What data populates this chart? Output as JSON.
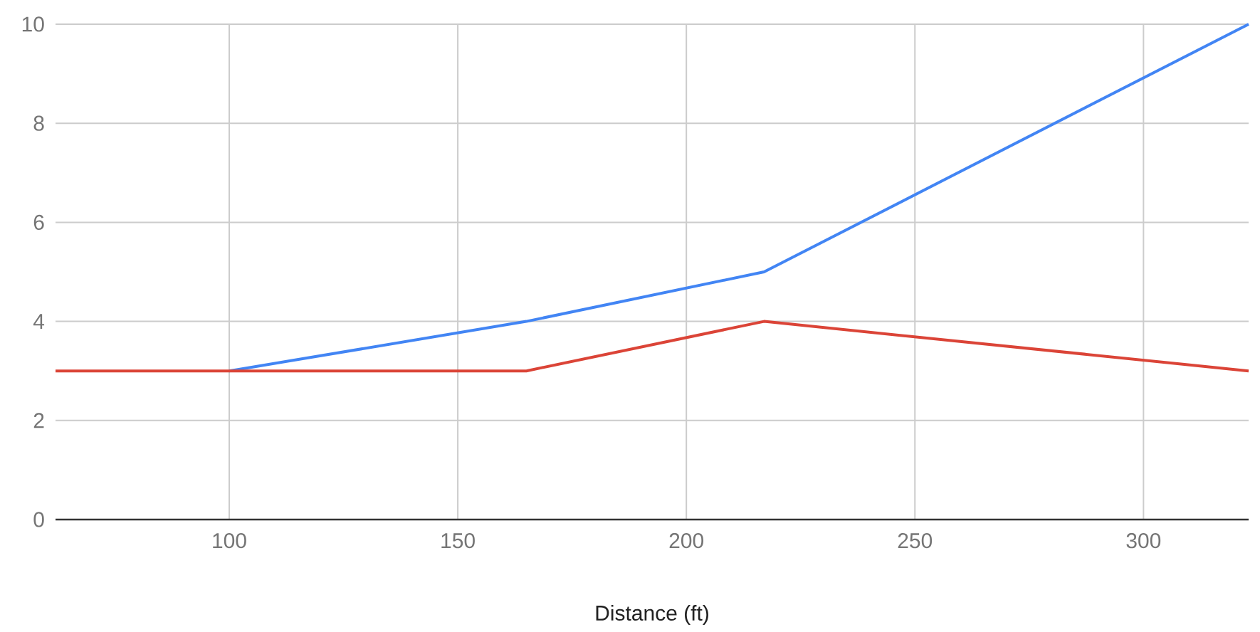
{
  "chart_data": {
    "type": "line",
    "xlabel": "Distance (ft)",
    "xlim": [
      62,
      323
    ],
    "xticks": [
      100,
      150,
      200,
      250,
      300
    ],
    "ylim": [
      0,
      10
    ],
    "yticks": [
      0,
      2,
      4,
      6,
      8,
      10
    ],
    "grid": true,
    "marker": "none",
    "line_style": "solid",
    "series": [
      {
        "color": "#4285f4",
        "x": [
          100,
          165,
          217,
          323
        ],
        "values": [
          3,
          4,
          5,
          10
        ]
      },
      {
        "color": "#db4437",
        "x": [
          62,
          165,
          217,
          323
        ],
        "values": [
          3,
          3,
          4,
          3
        ]
      }
    ]
  }
}
